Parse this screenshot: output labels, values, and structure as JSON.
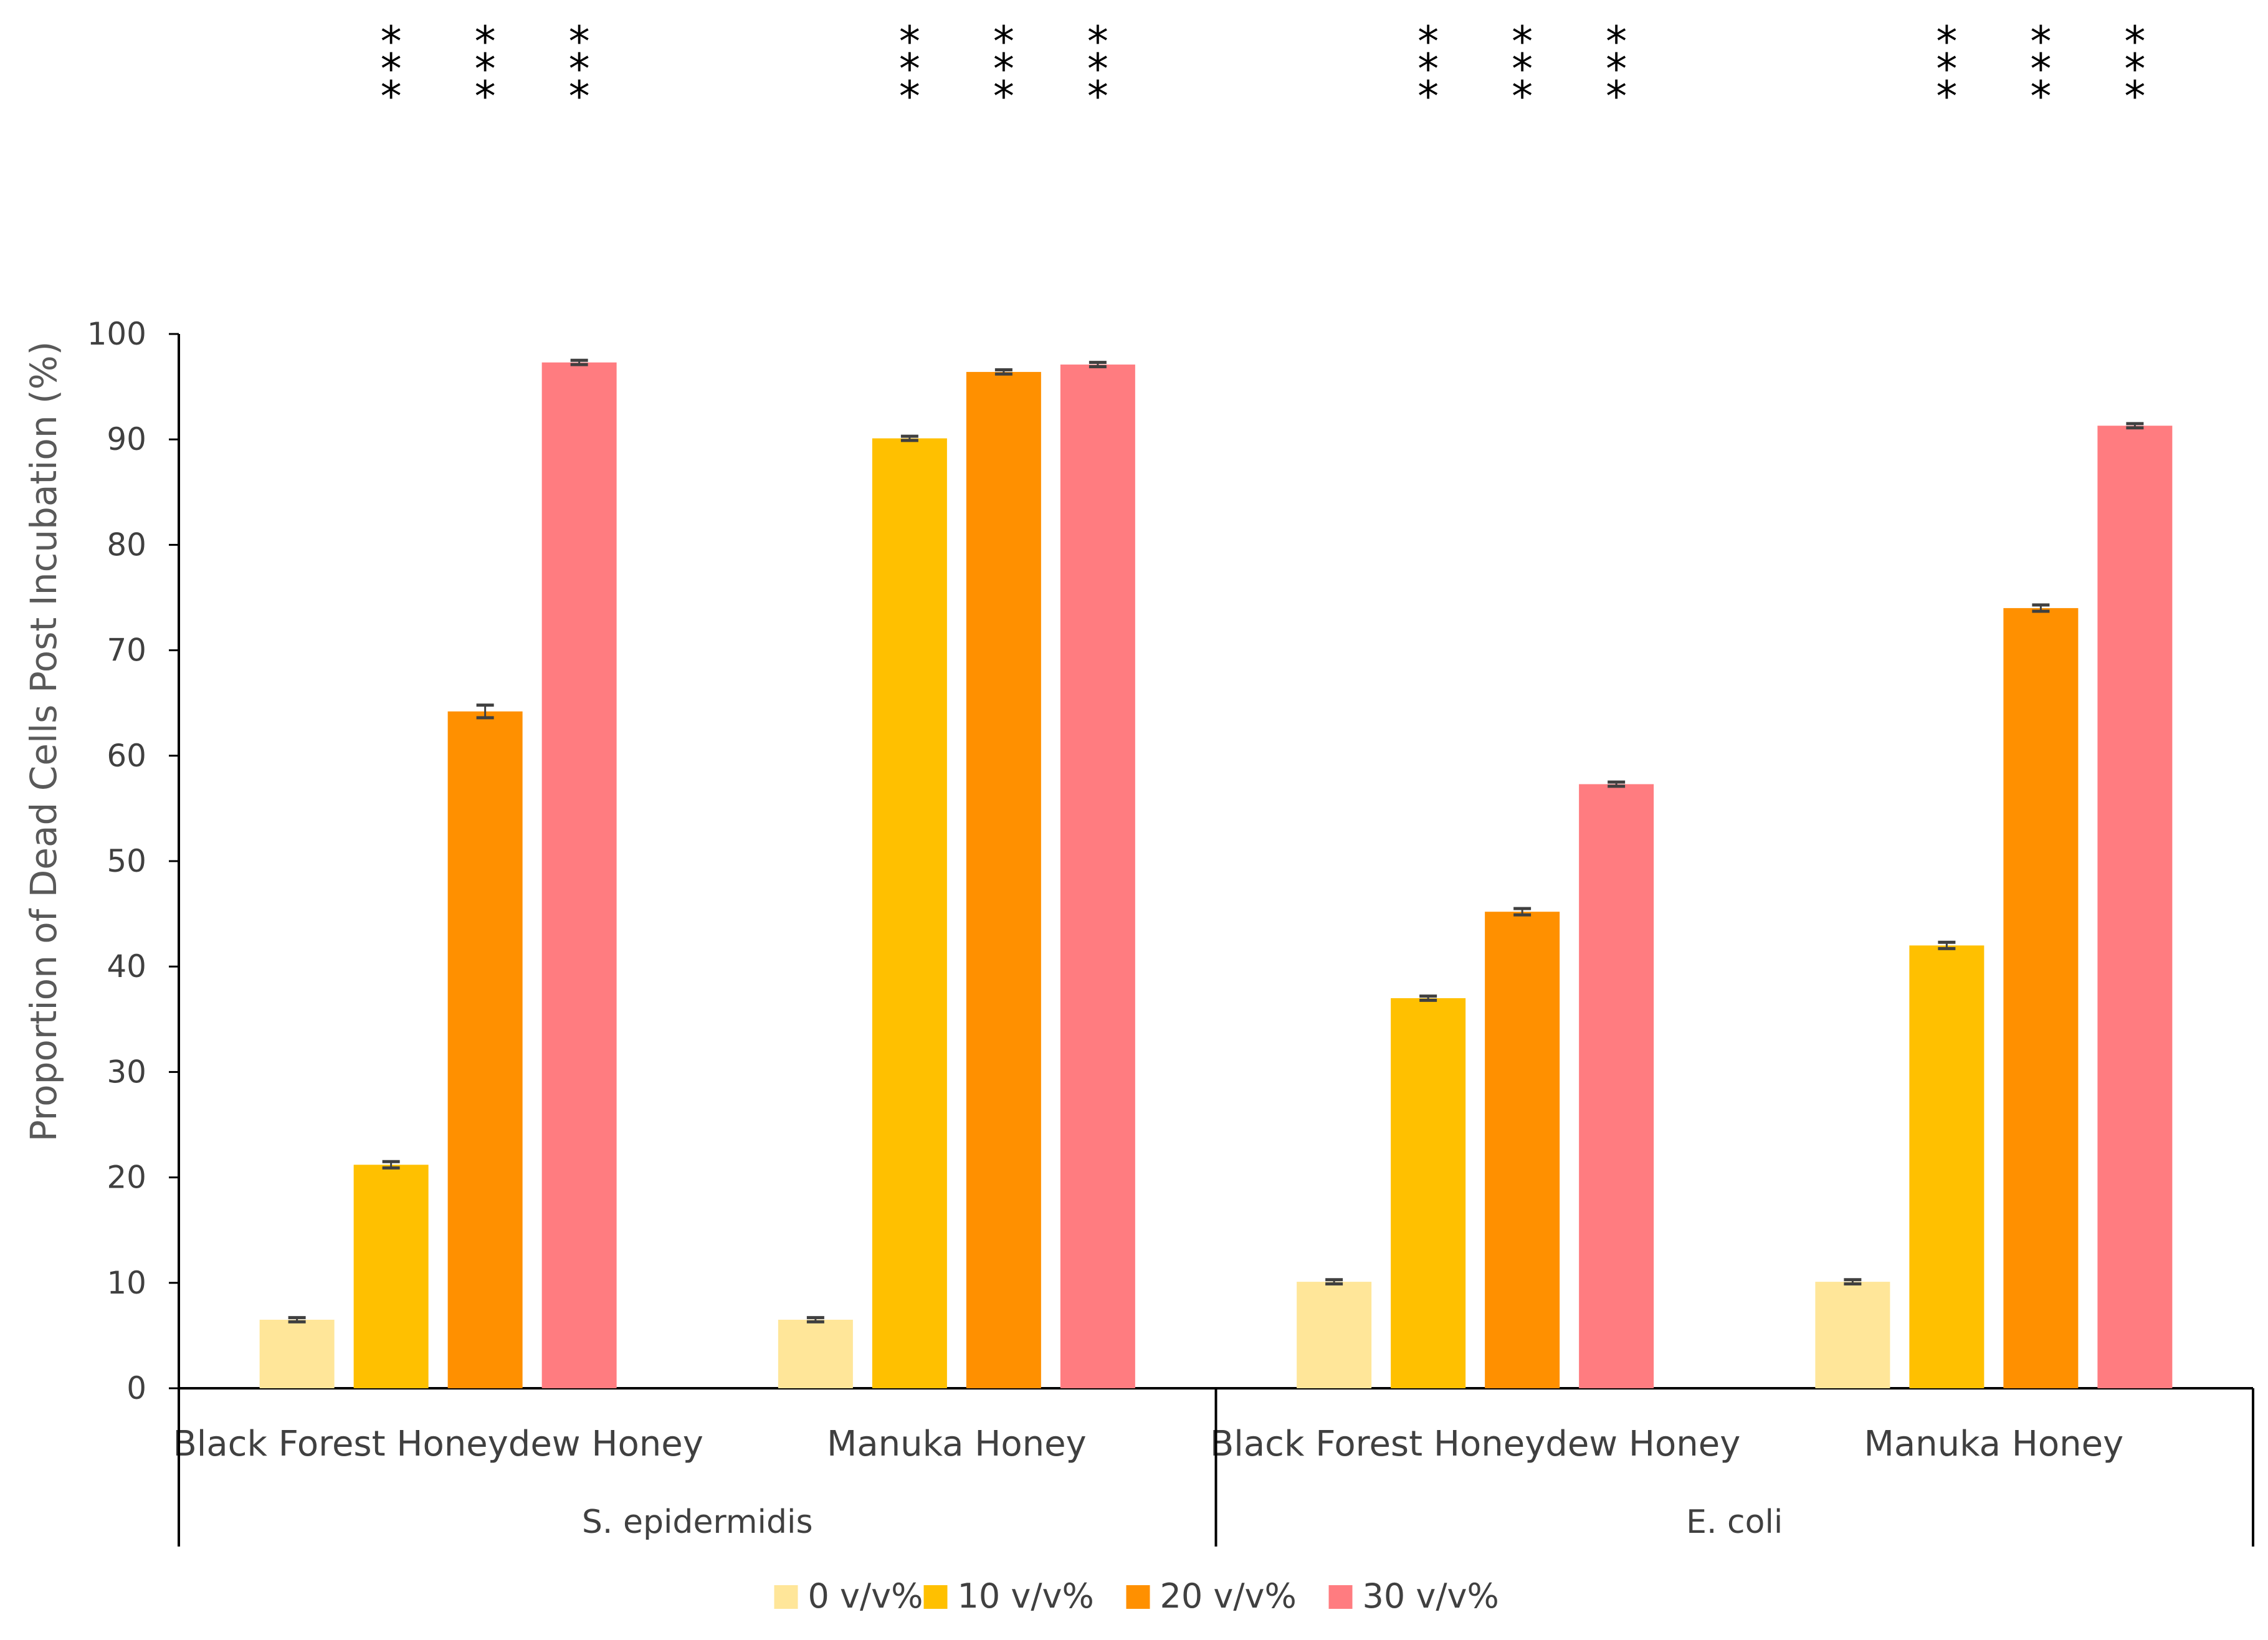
{
  "chart_data": {
    "type": "bar",
    "title": "",
    "xlabel": "",
    "ylabel": "Proportion of Dead Cells Post Incubation (%)",
    "ylim": [
      0,
      100
    ],
    "yticks": [
      "0",
      "10",
      "20",
      "30",
      "40",
      "50",
      "60",
      "70",
      "80",
      "90",
      "100"
    ],
    "grid": false,
    "legend_position": "bottom",
    "groups": [
      {
        "name": "S. epidermidis",
        "categories": [
          "Black Forest Honeydew Honey",
          "Manuka Honey"
        ]
      },
      {
        "name": "E. coli",
        "categories": [
          "Black Forest Honeydew Honey",
          "Manuka Honey"
        ]
      }
    ],
    "series": [
      {
        "name": "0 v/v%",
        "color": "#FFE699",
        "values": [
          6.5,
          6.5,
          10.1,
          10.1
        ],
        "errors": [
          0.2,
          0.2,
          0.2,
          0.2
        ]
      },
      {
        "name": "10 v/v%",
        "color": "#FFC000",
        "values": [
          21.2,
          90.1,
          37.0,
          42.0
        ],
        "errors": [
          0.3,
          0.2,
          0.2,
          0.3
        ]
      },
      {
        "name": "20 v/v%",
        "color": "#FF9000",
        "values": [
          64.2,
          96.4,
          45.2,
          74.0
        ],
        "errors": [
          0.6,
          0.2,
          0.3,
          0.3
        ]
      },
      {
        "name": "30 v/v%",
        "color": "#FF7C80",
        "values": [
          97.3,
          97.1,
          57.3,
          91.3
        ],
        "errors": [
          0.2,
          0.2,
          0.2,
          0.2
        ]
      }
    ],
    "annotations": {
      "marker": "***",
      "placement": "above-panel",
      "bars": [
        [
          "S. epidermidis",
          "Black Forest Honeydew Honey",
          "10 v/v%"
        ],
        [
          "S. epidermidis",
          "Black Forest Honeydew Honey",
          "20 v/v%"
        ],
        [
          "S. epidermidis",
          "Black Forest Honeydew Honey",
          "30 v/v%"
        ],
        [
          "S. epidermidis",
          "Manuka Honey",
          "10 v/v%"
        ],
        [
          "S. epidermidis",
          "Manuka Honey",
          "20 v/v%"
        ],
        [
          "S. epidermidis",
          "Manuka Honey",
          "30 v/v%"
        ],
        [
          "E. coli",
          "Black Forest Honeydew Honey",
          "10 v/v%"
        ],
        [
          "E. coli",
          "Black Forest Honeydew Honey",
          "20 v/v%"
        ],
        [
          "E. coli",
          "Black Forest Honeydew Honey",
          "30 v/v%"
        ],
        [
          "E. coli",
          "Manuka Honey",
          "10 v/v%"
        ],
        [
          "E. coli",
          "Manuka Honey",
          "20 v/v%"
        ],
        [
          "E. coli",
          "Manuka Honey",
          "30 v/v%"
        ]
      ]
    },
    "colors": {
      "axis": "#000000",
      "text": "#404040",
      "error_bar": "#404040"
    }
  }
}
